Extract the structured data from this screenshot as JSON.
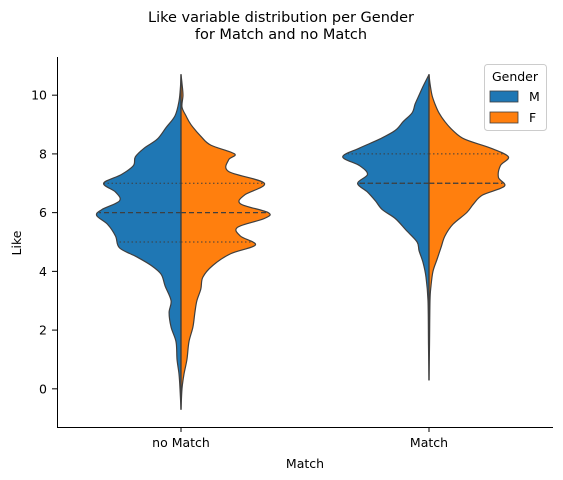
{
  "chart_data": {
    "type": "violin",
    "title_line1": "Like variable distribution per Gender",
    "title_line2": "for Match and no Match",
    "xlabel": "Match",
    "ylabel": "Like",
    "categories": [
      "no Match",
      "Match"
    ],
    "ylim": [
      -1.3,
      11.3
    ],
    "yticks": [
      0,
      2,
      4,
      6,
      8,
      10
    ],
    "grid": false,
    "split": true,
    "inner": "quartile",
    "legend": {
      "title": "Gender",
      "position": "top-right",
      "entries": [
        {
          "label": "M",
          "color": "#1f77b4"
        },
        {
          "label": "F",
          "color": "#ff7f0e"
        }
      ]
    },
    "groups": [
      {
        "category": "no Match",
        "quartiles": [
          5,
          6,
          7
        ],
        "M": [
          [
            -0.7,
            0.0
          ],
          [
            0.0,
            0.01
          ],
          [
            0.5,
            0.02
          ],
          [
            1.0,
            0.04
          ],
          [
            1.6,
            0.05
          ],
          [
            2.1,
            0.1
          ],
          [
            2.6,
            0.12
          ],
          [
            3.0,
            0.1
          ],
          [
            3.5,
            0.16
          ],
          [
            3.9,
            0.2
          ],
          [
            4.2,
            0.3
          ],
          [
            4.5,
            0.45
          ],
          [
            4.8,
            0.62
          ],
          [
            5.2,
            0.66
          ],
          [
            5.6,
            0.74
          ],
          [
            5.9,
            0.85
          ],
          [
            6.1,
            0.8
          ],
          [
            6.4,
            0.62
          ],
          [
            6.7,
            0.66
          ],
          [
            7.0,
            0.78
          ],
          [
            7.3,
            0.6
          ],
          [
            7.6,
            0.48
          ],
          [
            7.9,
            0.46
          ],
          [
            8.2,
            0.37
          ],
          [
            8.5,
            0.24
          ],
          [
            8.9,
            0.15
          ],
          [
            9.3,
            0.06
          ],
          [
            9.8,
            0.02
          ],
          [
            10.3,
            0.005
          ],
          [
            10.7,
            0.0
          ]
        ],
        "F": [
          [
            -0.7,
            0.0
          ],
          [
            0.0,
            0.01
          ],
          [
            0.5,
            0.03
          ],
          [
            1.0,
            0.06
          ],
          [
            1.6,
            0.08
          ],
          [
            2.1,
            0.12
          ],
          [
            2.6,
            0.14
          ],
          [
            3.0,
            0.16
          ],
          [
            3.4,
            0.2
          ],
          [
            3.8,
            0.22
          ],
          [
            4.2,
            0.32
          ],
          [
            4.6,
            0.5
          ],
          [
            4.9,
            0.75
          ],
          [
            5.2,
            0.6
          ],
          [
            5.5,
            0.57
          ],
          [
            5.8,
            0.84
          ],
          [
            6.0,
            0.88
          ],
          [
            6.3,
            0.6
          ],
          [
            6.6,
            0.64
          ],
          [
            7.0,
            0.84
          ],
          [
            7.4,
            0.48
          ],
          [
            7.8,
            0.48
          ],
          [
            8.0,
            0.54
          ],
          [
            8.3,
            0.3
          ],
          [
            8.6,
            0.2
          ],
          [
            9.0,
            0.1
          ],
          [
            9.3,
            0.05
          ],
          [
            9.6,
            0.01
          ],
          [
            10.0,
            0.02
          ],
          [
            10.4,
            0.01
          ],
          [
            10.7,
            0.0
          ]
        ]
      },
      {
        "category": "Match",
        "quartiles": [
          7,
          7,
          8
        ],
        "M": [
          [
            0.3,
            0.0
          ],
          [
            1.5,
            0.005
          ],
          [
            3.0,
            0.01
          ],
          [
            3.8,
            0.03
          ],
          [
            4.3,
            0.06
          ],
          [
            4.7,
            0.1
          ],
          [
            5.0,
            0.12
          ],
          [
            5.4,
            0.23
          ],
          [
            5.8,
            0.34
          ],
          [
            6.1,
            0.47
          ],
          [
            6.4,
            0.54
          ],
          [
            6.7,
            0.62
          ],
          [
            7.0,
            0.72
          ],
          [
            7.3,
            0.62
          ],
          [
            7.6,
            0.7
          ],
          [
            7.9,
            0.87
          ],
          [
            8.2,
            0.7
          ],
          [
            8.5,
            0.5
          ],
          [
            8.8,
            0.34
          ],
          [
            9.1,
            0.26
          ],
          [
            9.4,
            0.17
          ],
          [
            9.7,
            0.14
          ],
          [
            10.0,
            0.1
          ],
          [
            10.3,
            0.06
          ],
          [
            10.7,
            0.0
          ]
        ],
        "F": [
          [
            0.3,
            0.0
          ],
          [
            1.5,
            0.005
          ],
          [
            3.0,
            0.01
          ],
          [
            3.5,
            0.02
          ],
          [
            4.0,
            0.04
          ],
          [
            4.4,
            0.08
          ],
          [
            4.8,
            0.12
          ],
          [
            5.2,
            0.16
          ],
          [
            5.6,
            0.24
          ],
          [
            6.0,
            0.38
          ],
          [
            6.3,
            0.45
          ],
          [
            6.6,
            0.54
          ],
          [
            6.9,
            0.76
          ],
          [
            7.2,
            0.7
          ],
          [
            7.6,
            0.72
          ],
          [
            7.9,
            0.8
          ],
          [
            8.2,
            0.62
          ],
          [
            8.5,
            0.36
          ],
          [
            8.8,
            0.24
          ],
          [
            9.1,
            0.16
          ],
          [
            9.4,
            0.1
          ],
          [
            9.7,
            0.06
          ],
          [
            10.0,
            0.03
          ],
          [
            10.4,
            0.01
          ],
          [
            10.7,
            0.0
          ]
        ]
      }
    ]
  }
}
